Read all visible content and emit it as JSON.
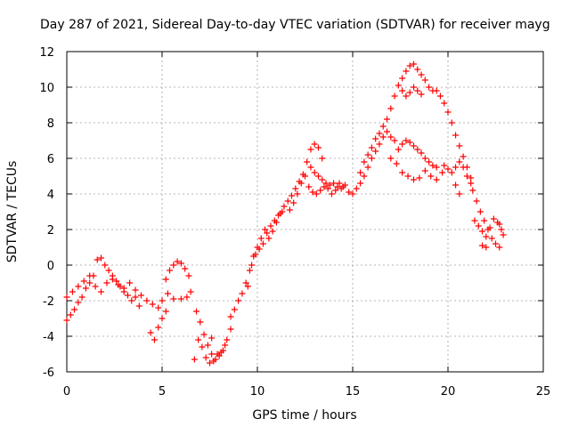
{
  "chart_data": {
    "type": "scatter",
    "title": "Day 287 of 2021, Sidereal Day-to-day VTEC variation (SDTVAR) for receiver mayg",
    "xlabel": "GPS time / hours",
    "ylabel": "SDTVAR / TECUs",
    "xlim": [
      0,
      25
    ],
    "ylim": [
      -6,
      12
    ],
    "x_ticks": [
      0,
      5,
      10,
      15,
      20,
      25
    ],
    "y_ticks": [
      -6,
      -4,
      -2,
      0,
      2,
      4,
      6,
      8,
      10,
      12
    ],
    "grid": true,
    "marker": "+",
    "color": "#ff0000",
    "series": [
      {
        "name": "SDTVAR",
        "points": [
          [
            0.0,
            -3.1
          ],
          [
            0.2,
            -2.8
          ],
          [
            0.4,
            -2.5
          ],
          [
            0.6,
            -2.1
          ],
          [
            0.8,
            -1.8
          ],
          [
            1.0,
            -1.3
          ],
          [
            1.2,
            -1.0
          ],
          [
            1.4,
            -0.6
          ],
          [
            1.6,
            0.3
          ],
          [
            1.8,
            0.4
          ],
          [
            2.0,
            0.0
          ],
          [
            2.2,
            -0.3
          ],
          [
            2.4,
            -0.6
          ],
          [
            2.6,
            -0.9
          ],
          [
            2.8,
            -1.2
          ],
          [
            3.0,
            -1.5
          ],
          [
            3.2,
            -1.7
          ],
          [
            3.4,
            -2.0
          ],
          [
            3.6,
            -1.8
          ],
          [
            3.8,
            -2.3
          ],
          [
            0.0,
            -1.8
          ],
          [
            0.3,
            -1.5
          ],
          [
            0.6,
            -1.2
          ],
          [
            0.9,
            -0.9
          ],
          [
            1.2,
            -0.6
          ],
          [
            1.5,
            -1.2
          ],
          [
            1.8,
            -1.5
          ],
          [
            2.1,
            -1.0
          ],
          [
            2.4,
            -0.8
          ],
          [
            2.7,
            -1.1
          ],
          [
            3.0,
            -1.3
          ],
          [
            3.3,
            -1.0
          ],
          [
            3.6,
            -1.4
          ],
          [
            3.9,
            -1.7
          ],
          [
            4.2,
            -2.0
          ],
          [
            4.5,
            -2.2
          ],
          [
            4.8,
            -2.4
          ],
          [
            5.0,
            -2.0
          ],
          [
            5.3,
            -1.6
          ],
          [
            5.6,
            -1.9
          ],
          [
            4.4,
            -3.8
          ],
          [
            4.6,
            -4.2
          ],
          [
            4.8,
            -3.5
          ],
          [
            5.0,
            -3.0
          ],
          [
            5.2,
            -2.6
          ],
          [
            5.2,
            -0.8
          ],
          [
            5.4,
            -0.3
          ],
          [
            5.6,
            0.0
          ],
          [
            5.8,
            0.2
          ],
          [
            6.0,
            0.1
          ],
          [
            6.2,
            -0.2
          ],
          [
            6.4,
            -0.6
          ],
          [
            6.5,
            -1.5
          ],
          [
            6.3,
            -1.8
          ],
          [
            6.0,
            -1.9
          ],
          [
            6.8,
            -2.6
          ],
          [
            7.0,
            -3.2
          ],
          [
            7.2,
            -3.9
          ],
          [
            7.4,
            -4.5
          ],
          [
            7.6,
            -5.0
          ],
          [
            7.8,
            -5.3
          ],
          [
            8.0,
            -5.1
          ],
          [
            8.2,
            -4.8
          ],
          [
            8.4,
            -4.2
          ],
          [
            8.6,
            -3.6
          ],
          [
            6.9,
            -4.2
          ],
          [
            7.1,
            -4.6
          ],
          [
            7.3,
            -5.2
          ],
          [
            7.5,
            -5.5
          ],
          [
            7.7,
            -5.4
          ],
          [
            7.9,
            -5.0
          ],
          [
            8.1,
            -4.9
          ],
          [
            8.3,
            -4.5
          ],
          [
            6.7,
            -5.3
          ],
          [
            7.6,
            -4.1
          ],
          [
            8.6,
            -2.9
          ],
          [
            8.8,
            -2.5
          ],
          [
            9.0,
            -2.0
          ],
          [
            9.2,
            -1.6
          ],
          [
            9.4,
            -1.0
          ],
          [
            9.6,
            -0.3
          ],
          [
            9.8,
            0.5
          ],
          [
            10.0,
            1.0
          ],
          [
            10.2,
            1.5
          ],
          [
            10.4,
            2.0
          ],
          [
            9.5,
            -1.2
          ],
          [
            9.7,
            0.0
          ],
          [
            9.9,
            0.6
          ],
          [
            10.1,
            0.9
          ],
          [
            10.3,
            1.2
          ],
          [
            10.5,
            1.8
          ],
          [
            10.7,
            2.2
          ],
          [
            10.9,
            2.5
          ],
          [
            11.1,
            2.8
          ],
          [
            11.3,
            3.0
          ],
          [
            10.6,
            1.5
          ],
          [
            10.8,
            1.9
          ],
          [
            11.0,
            2.4
          ],
          [
            11.2,
            2.9
          ],
          [
            11.4,
            3.3
          ],
          [
            11.6,
            3.6
          ],
          [
            11.8,
            3.9
          ],
          [
            12.0,
            4.3
          ],
          [
            12.2,
            4.7
          ],
          [
            12.4,
            5.1
          ],
          [
            11.7,
            3.1
          ],
          [
            11.9,
            3.5
          ],
          [
            12.1,
            4.0
          ],
          [
            12.3,
            4.6
          ],
          [
            12.5,
            5.0
          ],
          [
            12.6,
            5.8
          ],
          [
            12.8,
            6.5
          ],
          [
            13.0,
            6.8
          ],
          [
            13.2,
            6.6
          ],
          [
            13.4,
            6.0
          ],
          [
            12.8,
            5.5
          ],
          [
            13.0,
            5.2
          ],
          [
            13.2,
            5.0
          ],
          [
            13.4,
            4.8
          ],
          [
            13.6,
            4.6
          ],
          [
            13.8,
            4.5
          ],
          [
            14.0,
            4.6
          ],
          [
            14.2,
            4.4
          ],
          [
            14.4,
            4.3
          ],
          [
            14.6,
            4.5
          ],
          [
            12.7,
            4.4
          ],
          [
            12.9,
            4.1
          ],
          [
            13.1,
            4.0
          ],
          [
            13.3,
            4.2
          ],
          [
            13.5,
            4.4
          ],
          [
            13.7,
            4.3
          ],
          [
            13.9,
            4.0
          ],
          [
            14.1,
            4.2
          ],
          [
            14.3,
            4.6
          ],
          [
            14.5,
            4.4
          ],
          [
            14.8,
            4.1
          ],
          [
            15.0,
            4.0
          ],
          [
            15.2,
            4.3
          ],
          [
            15.4,
            4.6
          ],
          [
            15.6,
            5.0
          ],
          [
            15.8,
            5.5
          ],
          [
            16.0,
            6.0
          ],
          [
            16.2,
            6.4
          ],
          [
            16.4,
            6.8
          ],
          [
            16.6,
            7.2
          ],
          [
            15.4,
            5.2
          ],
          [
            15.6,
            5.8
          ],
          [
            15.8,
            6.2
          ],
          [
            16.0,
            6.6
          ],
          [
            16.2,
            7.1
          ],
          [
            16.4,
            7.4
          ],
          [
            16.6,
            7.8
          ],
          [
            16.8,
            8.2
          ],
          [
            17.0,
            8.8
          ],
          [
            17.2,
            9.5
          ],
          [
            17.4,
            10.1
          ],
          [
            17.6,
            10.5
          ],
          [
            17.8,
            10.9
          ],
          [
            18.0,
            11.2
          ],
          [
            18.2,
            11.3
          ],
          [
            18.4,
            11.0
          ],
          [
            18.6,
            10.7
          ],
          [
            18.8,
            10.4
          ],
          [
            19.0,
            10.0
          ],
          [
            19.2,
            9.8
          ],
          [
            17.6,
            9.8
          ],
          [
            17.8,
            9.5
          ],
          [
            18.0,
            9.7
          ],
          [
            18.2,
            10.0
          ],
          [
            18.4,
            9.8
          ],
          [
            18.6,
            9.6
          ],
          [
            16.8,
            7.5
          ],
          [
            17.0,
            7.2
          ],
          [
            17.2,
            7.0
          ],
          [
            17.4,
            6.5
          ],
          [
            17.6,
            6.8
          ],
          [
            17.8,
            7.0
          ],
          [
            18.0,
            6.9
          ],
          [
            18.2,
            6.7
          ],
          [
            18.4,
            6.5
          ],
          [
            18.6,
            6.3
          ],
          [
            18.8,
            6.0
          ],
          [
            19.0,
            5.8
          ],
          [
            19.2,
            5.6
          ],
          [
            19.4,
            5.5
          ],
          [
            17.0,
            6.0
          ],
          [
            17.3,
            5.7
          ],
          [
            17.6,
            5.2
          ],
          [
            17.9,
            5.0
          ],
          [
            18.2,
            4.8
          ],
          [
            18.5,
            4.9
          ],
          [
            18.8,
            5.3
          ],
          [
            19.1,
            5.0
          ],
          [
            19.4,
            4.8
          ],
          [
            19.7,
            5.2
          ],
          [
            19.4,
            9.8
          ],
          [
            19.6,
            9.5
          ],
          [
            19.8,
            9.1
          ],
          [
            20.0,
            8.6
          ],
          [
            20.2,
            8.0
          ],
          [
            20.4,
            7.3
          ],
          [
            20.6,
            6.7
          ],
          [
            20.8,
            6.1
          ],
          [
            21.0,
            5.5
          ],
          [
            21.2,
            4.9
          ],
          [
            19.8,
            5.6
          ],
          [
            20.0,
            5.4
          ],
          [
            20.2,
            5.2
          ],
          [
            20.4,
            5.5
          ],
          [
            20.6,
            5.8
          ],
          [
            20.8,
            5.5
          ],
          [
            21.0,
            5.0
          ],
          [
            21.2,
            4.6
          ],
          [
            20.4,
            4.5
          ],
          [
            20.6,
            4.0
          ],
          [
            21.3,
            4.2
          ],
          [
            21.5,
            3.6
          ],
          [
            21.7,
            3.0
          ],
          [
            21.9,
            2.5
          ],
          [
            22.1,
            2.0
          ],
          [
            22.3,
            1.5
          ],
          [
            22.5,
            1.2
          ],
          [
            22.7,
            1.0
          ],
          [
            21.8,
            1.1
          ],
          [
            22.0,
            1.0
          ],
          [
            21.4,
            2.5
          ],
          [
            21.6,
            2.2
          ],
          [
            21.8,
            1.9
          ],
          [
            22.0,
            1.6
          ],
          [
            22.2,
            2.1
          ],
          [
            22.4,
            2.6
          ],
          [
            22.6,
            2.4
          ],
          [
            22.8,
            2.0
          ],
          [
            22.9,
            1.7
          ],
          [
            22.7,
            2.3
          ]
        ]
      }
    ]
  }
}
